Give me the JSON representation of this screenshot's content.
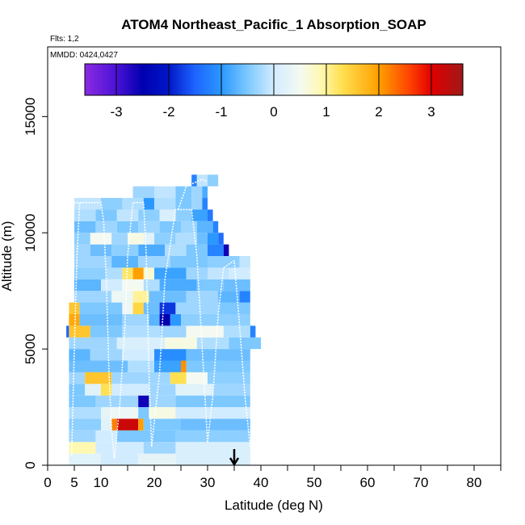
{
  "chart_data": {
    "type": "heatmap",
    "title": "ATOM4 Northeast_Pacific_1 Absorption_SOAP",
    "flights_note": "Flts: 1,2",
    "dates_note": "MMDD: 0424,0427",
    "xlabel": "Latitude (deg N)",
    "ylabel": "Altitude (m)",
    "xlim": [
      0,
      85
    ],
    "ylim": [
      0,
      18000
    ],
    "xticks": [
      0,
      5,
      10,
      20,
      30,
      40,
      50,
      60,
      70,
      80
    ],
    "xtick_labels": [
      "0",
      "5",
      "10",
      "20",
      "30",
      "40",
      "50",
      "60",
      "70",
      "80"
    ],
    "xminor_ticks": [
      15,
      25,
      35,
      45,
      55,
      65,
      75,
      85
    ],
    "yticks": [
      0,
      5000,
      10000,
      15000
    ],
    "ytick_labels": [
      "0",
      "5000",
      "10000",
      "15000"
    ],
    "colorbar": {
      "range": [
        -3.6,
        3.6
      ],
      "ticks": [
        -3,
        -2,
        -1,
        0,
        1,
        2,
        3
      ],
      "tick_labels": [
        "-3",
        "-2",
        "-1",
        "0",
        "1",
        "2",
        "3"
      ],
      "stops": [
        {
          "v": -3.6,
          "c": "#8a2be2"
        },
        {
          "v": -3.0,
          "c": "#4b12d6"
        },
        {
          "v": -2.5,
          "c": "#0000b0"
        },
        {
          "v": -2.0,
          "c": "#0018c8"
        },
        {
          "v": -1.5,
          "c": "#1e64ff"
        },
        {
          "v": -1.0,
          "c": "#2a98ff"
        },
        {
          "v": -0.5,
          "c": "#7cc8ff"
        },
        {
          "v": 0.0,
          "c": "#d2ecff"
        },
        {
          "v": 0.5,
          "c": "#f4faf2"
        },
        {
          "v": 0.9,
          "c": "#fff8b0"
        },
        {
          "v": 1.3,
          "c": "#ffe050"
        },
        {
          "v": 2.0,
          "c": "#ffa000"
        },
        {
          "v": 2.6,
          "c": "#ff4000"
        },
        {
          "v": 3.0,
          "c": "#e00000"
        },
        {
          "v": 3.6,
          "c": "#a01818"
        }
      ]
    },
    "marker": {
      "latitude": 35,
      "description": "arrow"
    },
    "alt_bins": [
      {
        "y0": 0,
        "y1": 500,
        "segs": [
          [
            4,
            10,
            0.2
          ],
          [
            10,
            17,
            0.0
          ],
          [
            17,
            24,
            0.3
          ],
          [
            24,
            38,
            0.1
          ]
        ]
      },
      {
        "y0": 500,
        "y1": 1000,
        "segs": [
          [
            4,
            9,
            0.9
          ],
          [
            9,
            18,
            0.0
          ],
          [
            18,
            24,
            -0.3
          ],
          [
            24,
            38,
            0.1
          ]
        ]
      },
      {
        "y0": 1000,
        "y1": 1500,
        "segs": [
          [
            4,
            9,
            -0.3
          ],
          [
            9,
            13,
            0.0
          ],
          [
            13,
            24,
            -0.5
          ],
          [
            24,
            38,
            -0.4
          ]
        ]
      },
      {
        "y0": 1500,
        "y1": 2000,
        "segs": [
          [
            4,
            10,
            -0.4
          ],
          [
            10,
            12,
            0.2
          ],
          [
            12,
            13,
            2.2
          ],
          [
            13,
            17,
            3.2
          ],
          [
            17,
            18,
            2.0
          ],
          [
            18,
            25,
            -0.5
          ],
          [
            25,
            38,
            -0.6
          ]
        ]
      },
      {
        "y0": 2000,
        "y1": 2500,
        "segs": [
          [
            4,
            10,
            -0.2
          ],
          [
            10,
            12,
            0.3
          ],
          [
            12,
            17,
            0.4
          ],
          [
            17,
            19,
            -0.5
          ],
          [
            19,
            24,
            0.6
          ],
          [
            24,
            38,
            0.0
          ]
        ]
      },
      {
        "y0": 2500,
        "y1": 3000,
        "segs": [
          [
            4,
            9,
            -0.5
          ],
          [
            9,
            17,
            -0.3
          ],
          [
            17,
            19,
            -2.6
          ],
          [
            19,
            24,
            -0.3
          ],
          [
            24,
            38,
            -0.5
          ]
        ]
      },
      {
        "y0": 3000,
        "y1": 3500,
        "segs": [
          [
            4,
            7,
            -0.5
          ],
          [
            7,
            10,
            0.2
          ],
          [
            10,
            12,
            1.3
          ],
          [
            12,
            19,
            0.0
          ],
          [
            19,
            24,
            -0.3
          ],
          [
            24,
            31,
            0.2
          ],
          [
            31,
            38,
            -0.3
          ]
        ]
      },
      {
        "y0": 3500,
        "y1": 4000,
        "segs": [
          [
            4,
            7,
            -0.3
          ],
          [
            7,
            12,
            1.6
          ],
          [
            12,
            23,
            -0.3
          ],
          [
            23,
            26,
            1.3
          ],
          [
            26,
            30,
            0.5
          ],
          [
            30,
            38,
            -0.4
          ]
        ]
      },
      {
        "y0": 4000,
        "y1": 4500,
        "segs": [
          [
            4,
            15,
            -0.6
          ],
          [
            15,
            20,
            -0.2
          ],
          [
            20,
            25,
            -0.9
          ],
          [
            25,
            26,
            2.1
          ],
          [
            26,
            38,
            -0.5
          ]
        ]
      },
      {
        "y0": 4500,
        "y1": 5000,
        "segs": [
          [
            4,
            8,
            -0.7
          ],
          [
            8,
            14,
            -0.3
          ],
          [
            14,
            20,
            0.0
          ],
          [
            20,
            26,
            -1.1
          ],
          [
            26,
            38,
            -0.6
          ]
        ]
      },
      {
        "y0": 5000,
        "y1": 5500,
        "segs": [
          [
            4,
            13,
            -0.3
          ],
          [
            13,
            22,
            0.1
          ],
          [
            22,
            28,
            0.6
          ],
          [
            28,
            34,
            -0.2
          ],
          [
            34,
            40,
            -0.5
          ]
        ]
      },
      {
        "y0": 5500,
        "y1": 6000,
        "segs": [
          [
            3.5,
            4,
            -1.5
          ],
          [
            4,
            8,
            1.6
          ],
          [
            8,
            14,
            -0.5
          ],
          [
            14,
            21,
            -0.2
          ],
          [
            21,
            26,
            -0.3
          ],
          [
            26,
            33,
            0.5
          ],
          [
            33,
            38,
            -0.2
          ],
          [
            38,
            39,
            -1.2
          ]
        ]
      },
      {
        "y0": 6000,
        "y1": 6500,
        "segs": [
          [
            4,
            6,
            1.9
          ],
          [
            6,
            14,
            -0.6
          ],
          [
            14,
            19,
            -0.3
          ],
          [
            19,
            21,
            -0.7
          ],
          [
            21,
            23,
            -2.5
          ],
          [
            23,
            25,
            -1.0
          ],
          [
            25,
            38,
            -0.4
          ]
        ]
      },
      {
        "y0": 6500,
        "y1": 7000,
        "segs": [
          [
            4,
            6,
            1.6
          ],
          [
            6,
            14,
            -0.5
          ],
          [
            14,
            16,
            0.4
          ],
          [
            16,
            18,
            1.4
          ],
          [
            18,
            21,
            -0.6
          ],
          [
            21,
            24,
            -1.8
          ],
          [
            24,
            32,
            -0.3
          ],
          [
            32,
            38,
            -0.5
          ]
        ]
      },
      {
        "y0": 7000,
        "y1": 7500,
        "segs": [
          [
            5,
            12,
            -0.3
          ],
          [
            12,
            16,
            0.4
          ],
          [
            16,
            19,
            1.0
          ],
          [
            19,
            26,
            -0.6
          ],
          [
            26,
            32,
            -0.3
          ],
          [
            32,
            36,
            -0.7
          ],
          [
            36,
            38,
            -1.2
          ]
        ]
      },
      {
        "y0": 7500,
        "y1": 8000,
        "segs": [
          [
            5,
            10,
            -0.7
          ],
          [
            10,
            14,
            0.0
          ],
          [
            14,
            18,
            0.5
          ],
          [
            18,
            21,
            -0.2
          ],
          [
            21,
            28,
            -0.8
          ],
          [
            28,
            33,
            -0.5
          ],
          [
            33,
            38,
            -0.6
          ]
        ]
      },
      {
        "y0": 8000,
        "y1": 8500,
        "segs": [
          [
            5,
            11,
            -0.4
          ],
          [
            11,
            14,
            -0.2
          ],
          [
            14,
            16,
            1.2
          ],
          [
            16,
            18,
            2.0
          ],
          [
            18,
            20,
            0.7
          ],
          [
            20,
            26,
            -0.9
          ],
          [
            26,
            30,
            -0.3
          ],
          [
            30,
            34,
            -0.1
          ],
          [
            34,
            38,
            0.0
          ]
        ]
      },
      {
        "y0": 8500,
        "y1": 9000,
        "segs": [
          [
            5,
            12,
            -0.3
          ],
          [
            12,
            17,
            -0.7
          ],
          [
            17,
            23,
            -0.3
          ],
          [
            23,
            30,
            -0.5
          ],
          [
            30,
            36,
            -0.4
          ],
          [
            36,
            38,
            -0.1
          ]
        ]
      },
      {
        "y0": 9000,
        "y1": 9500,
        "segs": [
          [
            5,
            8,
            -0.3
          ],
          [
            8,
            12,
            -0.6
          ],
          [
            12,
            17,
            -0.4
          ],
          [
            17,
            22,
            -0.8
          ],
          [
            22,
            26,
            -0.2
          ],
          [
            26,
            30,
            -0.5
          ],
          [
            30,
            33,
            -1.2
          ],
          [
            33,
            34,
            -2.6
          ]
        ]
      },
      {
        "y0": 9500,
        "y1": 10000,
        "segs": [
          [
            5,
            8,
            -0.4
          ],
          [
            8,
            12,
            0.5
          ],
          [
            12,
            15,
            -0.3
          ],
          [
            15,
            18,
            0.6
          ],
          [
            18,
            20,
            0.2
          ],
          [
            20,
            24,
            -0.4
          ],
          [
            24,
            28,
            -0.2
          ],
          [
            28,
            30,
            -0.6
          ],
          [
            30,
            32,
            -1.0
          ],
          [
            32,
            33,
            -1.4
          ]
        ]
      },
      {
        "y0": 10000,
        "y1": 10500,
        "segs": [
          [
            5,
            9,
            -0.6
          ],
          [
            9,
            13,
            -0.3
          ],
          [
            13,
            17,
            -0.5
          ],
          [
            17,
            21,
            -0.3
          ],
          [
            21,
            25,
            -0.5
          ],
          [
            25,
            28,
            -0.3
          ],
          [
            28,
            31,
            -0.7
          ],
          [
            31,
            32,
            -1.2
          ]
        ]
      },
      {
        "y0": 10500,
        "y1": 11000,
        "segs": [
          [
            5,
            9,
            -0.2
          ],
          [
            9,
            13,
            -0.5
          ],
          [
            13,
            17,
            -0.1
          ],
          [
            17,
            21,
            -0.4
          ],
          [
            21,
            24,
            0.1
          ],
          [
            24,
            27,
            -0.4
          ],
          [
            27,
            30,
            -0.9
          ],
          [
            30,
            31,
            -1.3
          ]
        ]
      },
      {
        "y0": 11000,
        "y1": 11500,
        "segs": [
          [
            5,
            10,
            -0.1
          ],
          [
            10,
            14,
            -0.4
          ],
          [
            14,
            18,
            -0.2
          ],
          [
            18,
            20,
            -1.0
          ],
          [
            20,
            24,
            -0.2
          ],
          [
            24,
            27,
            -0.5
          ],
          [
            27,
            29,
            -0.3
          ],
          [
            29,
            30,
            -1.2
          ]
        ]
      },
      {
        "y0": 11500,
        "y1": 12000,
        "segs": [
          [
            16,
            20,
            -0.3
          ],
          [
            20,
            24,
            -0.1
          ],
          [
            24,
            27,
            -0.5
          ],
          [
            27,
            29,
            -0.3
          ],
          [
            29,
            30,
            -0.8
          ]
        ]
      },
      {
        "y0": 12000,
        "y1": 12500,
        "segs": [
          [
            27,
            28,
            -1.2
          ],
          [
            28,
            30,
            -0.1
          ],
          [
            30,
            32,
            -0.4
          ]
        ]
      }
    ],
    "flight_tracks": [
      [
        [
          5,
          11300
        ],
        [
          10,
          11300
        ],
        [
          10.5,
          10500
        ],
        [
          11,
          8000
        ],
        [
          11.5,
          4000
        ],
        [
          12,
          1500
        ],
        [
          12.5,
          300
        ]
      ],
      [
        [
          12.5,
          300
        ],
        [
          13.5,
          2500
        ],
        [
          14.5,
          6000
        ],
        [
          15,
          9000
        ],
        [
          16,
          11300
        ],
        [
          18,
          11300
        ],
        [
          18.5,
          9000
        ],
        [
          19,
          4000
        ],
        [
          19.5,
          800
        ]
      ],
      [
        [
          19.5,
          800
        ],
        [
          21,
          4000
        ],
        [
          22,
          8000
        ],
        [
          24,
          11000
        ],
        [
          27,
          11000
        ],
        [
          28,
          9000
        ],
        [
          29,
          5000
        ],
        [
          30,
          1000
        ]
      ],
      [
        [
          30,
          1000
        ],
        [
          31,
          3000
        ],
        [
          32,
          6500
        ],
        [
          33,
          8500
        ],
        [
          35,
          8800
        ],
        [
          36,
          6000
        ],
        [
          37,
          3000
        ],
        [
          38,
          800
        ]
      ],
      [
        [
          4.5,
          400
        ],
        [
          5,
          5000
        ],
        [
          5.5,
          9000
        ],
        [
          6,
          11300
        ]
      ],
      [
        [
          24.5,
          11000
        ],
        [
          26,
          12000
        ],
        [
          29,
          12300
        ],
        [
          30,
          12200
        ]
      ]
    ]
  }
}
